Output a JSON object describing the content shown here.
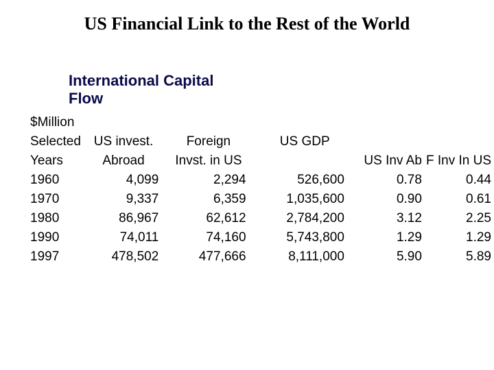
{
  "title": "US Financial Link to the Rest of the World",
  "subtitle": "International Capital Flow",
  "headers": {
    "unit_line": "$Million",
    "year_l1": "Selected",
    "year_l2": "Years",
    "usinv_l1": "US invest.",
    "usinv_l2": "Abroad",
    "finv_l1": "Foreign",
    "finv_l2": "Invst. in US",
    "gdp": "US GDP",
    "ratio1": "US Inv Ab",
    "ratio2": "F Inv In US"
  },
  "rows": [
    {
      "year": "1960",
      "us_invest_abroad": "4,099",
      "foreign_invest_us": "2,294",
      "us_gdp": "526,600",
      "r1": "0.78",
      "r2": "0.44"
    },
    {
      "year": "1970",
      "us_invest_abroad": "9,337",
      "foreign_invest_us": "6,359",
      "us_gdp": "1,035,600",
      "r1": "0.90",
      "r2": "0.61"
    },
    {
      "year": "1980",
      "us_invest_abroad": "86,967",
      "foreign_invest_us": "62,612",
      "us_gdp": "2,784,200",
      "r1": "3.12",
      "r2": "2.25"
    },
    {
      "year": "1990",
      "us_invest_abroad": "74,011",
      "foreign_invest_us": "74,160",
      "us_gdp": "5,743,800",
      "r1": "1.29",
      "r2": "1.29"
    },
    {
      "year": "1997",
      "us_invest_abroad": "478,502",
      "foreign_invest_us": "477,666",
      "us_gdp": "8,111,000",
      "r1": "5.90",
      "r2": "5.89"
    }
  ],
  "style": {
    "title_font": "Times New Roman",
    "title_size_pt": 26,
    "title_weight": "bold",
    "subtitle_color": "#0a0a4a",
    "subtitle_size_pt": 22,
    "subtitle_weight": "bold",
    "body_font": "Arial",
    "body_size_pt": 19,
    "background": "#ffffff",
    "text_color": "#000000"
  }
}
